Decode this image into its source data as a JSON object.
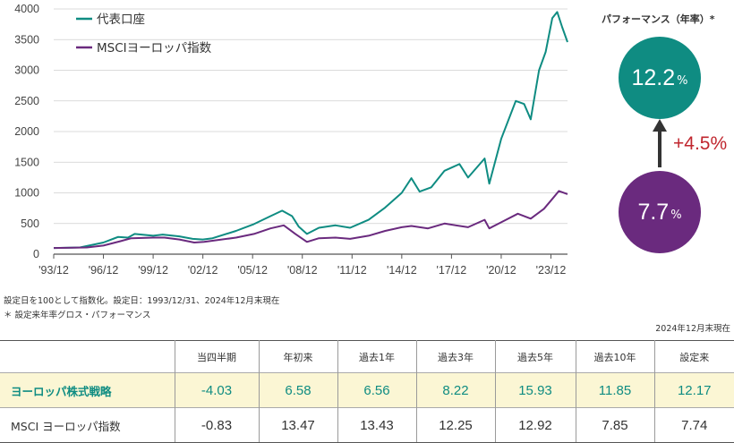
{
  "chart_data": {
    "type": "line",
    "x_categories": [
      "'93/12",
      "'96/12",
      "'99/12",
      "'02/12",
      "'05/12",
      "'08/12",
      "'11/12",
      "'14/12",
      "'17/12",
      "'20/12",
      "'23/12"
    ],
    "x_range": [
      1993.92,
      2024.92
    ],
    "ylim": [
      0,
      4000
    ],
    "yticks": [
      0,
      500,
      1000,
      1500,
      2000,
      2500,
      3000,
      3500,
      4000
    ],
    "grid": "horizontal",
    "legend_position": "top-left",
    "series": [
      {
        "name": "代表口座",
        "color": "#0f8c82",
        "points": [
          [
            1993.92,
            100
          ],
          [
            1995.5,
            110
          ],
          [
            1996.92,
            190
          ],
          [
            1997.8,
            280
          ],
          [
            1998.4,
            270
          ],
          [
            1998.8,
            330
          ],
          [
            1999.92,
            300
          ],
          [
            2000.5,
            320
          ],
          [
            2001.5,
            290
          ],
          [
            2002.3,
            250
          ],
          [
            2002.92,
            240
          ],
          [
            2003.5,
            260
          ],
          [
            2004.92,
            380
          ],
          [
            2006.0,
            490
          ],
          [
            2007.0,
            620
          ],
          [
            2007.7,
            710
          ],
          [
            2008.3,
            620
          ],
          [
            2008.7,
            450
          ],
          [
            2009.2,
            330
          ],
          [
            2009.92,
            430
          ],
          [
            2010.92,
            470
          ],
          [
            2011.8,
            430
          ],
          [
            2012.92,
            560
          ],
          [
            2013.92,
            760
          ],
          [
            2014.92,
            1000
          ],
          [
            2015.5,
            1240
          ],
          [
            2016.0,
            1020
          ],
          [
            2016.7,
            1090
          ],
          [
            2017.5,
            1360
          ],
          [
            2018.4,
            1470
          ],
          [
            2018.92,
            1250
          ],
          [
            2019.92,
            1560
          ],
          [
            2020.2,
            1150
          ],
          [
            2020.92,
            1880
          ],
          [
            2021.8,
            2500
          ],
          [
            2022.3,
            2450
          ],
          [
            2022.7,
            2200
          ],
          [
            2023.2,
            3000
          ],
          [
            2023.6,
            3300
          ],
          [
            2024.0,
            3850
          ],
          [
            2024.3,
            3950
          ],
          [
            2024.6,
            3700
          ],
          [
            2024.92,
            3460
          ]
        ]
      },
      {
        "name": "MSCIヨーロッパ指数",
        "color": "#6a2a7e",
        "points": [
          [
            1993.92,
            100
          ],
          [
            1995.92,
            110
          ],
          [
            1996.92,
            140
          ],
          [
            1997.92,
            210
          ],
          [
            1998.6,
            260
          ],
          [
            1999.92,
            270
          ],
          [
            2000.6,
            270
          ],
          [
            2001.5,
            240
          ],
          [
            2002.4,
            190
          ],
          [
            2003.0,
            200
          ],
          [
            2004.92,
            270
          ],
          [
            2006.0,
            330
          ],
          [
            2007.0,
            420
          ],
          [
            2007.8,
            470
          ],
          [
            2008.5,
            330
          ],
          [
            2009.2,
            200
          ],
          [
            2009.92,
            260
          ],
          [
            2010.92,
            270
          ],
          [
            2011.8,
            250
          ],
          [
            2012.92,
            300
          ],
          [
            2013.92,
            380
          ],
          [
            2014.92,
            440
          ],
          [
            2015.5,
            460
          ],
          [
            2016.5,
            420
          ],
          [
            2017.5,
            500
          ],
          [
            2018.92,
            440
          ],
          [
            2019.92,
            560
          ],
          [
            2020.2,
            420
          ],
          [
            2020.92,
            520
          ],
          [
            2021.92,
            660
          ],
          [
            2022.7,
            580
          ],
          [
            2023.5,
            740
          ],
          [
            2024.0,
            900
          ],
          [
            2024.4,
            1030
          ],
          [
            2024.92,
            980
          ]
        ]
      }
    ]
  },
  "performance": {
    "title": "パフォーマンス（年率）*",
    "fund_value": "12.2",
    "index_value": "7.7",
    "pct_unit": "%",
    "difference": "+4.5%",
    "fund_color": "#0f8c82",
    "index_color": "#6a2a7e",
    "difference_color": "#c0262e"
  },
  "notes": {
    "line1": "設定日を100として指数化。設定日：1993/12/31、2024年12月末現在",
    "line2": "＊ 設定来年率グロス・パフォーマンス",
    "as_of": "2024年12月末現在"
  },
  "table": {
    "headers": [
      "",
      "当四半期",
      "年初来",
      "過去1年",
      "過去3年",
      "過去5年",
      "過去10年",
      "設定来"
    ],
    "rows": [
      {
        "label": "ヨーロッパ株式戦略",
        "values": [
          "-4.03",
          "6.58",
          "6.56",
          "8.22",
          "15.93",
          "11.85",
          "12.17"
        ]
      },
      {
        "label": "MSCI ヨーロッパ指数",
        "values": [
          "-0.83",
          "13.47",
          "13.43",
          "12.25",
          "12.92",
          "7.85",
          "7.74"
        ]
      }
    ]
  }
}
